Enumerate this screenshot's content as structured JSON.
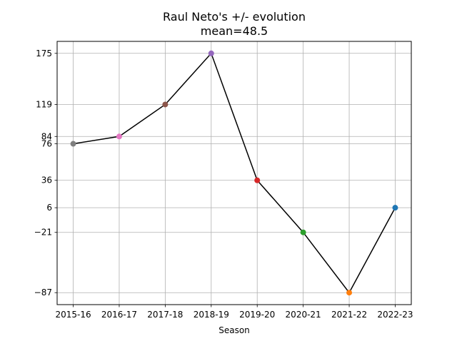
{
  "chart_data": {
    "type": "line",
    "title": "Raul Neto's +/- evolution",
    "subtitle": "mean=48.5",
    "xlabel": "Season",
    "ylabel": "",
    "categories": [
      "2015-16",
      "2016-17",
      "2017-18",
      "2018-19",
      "2019-20",
      "2020-21",
      "2021-22",
      "2022-23"
    ],
    "values": [
      76,
      84,
      119,
      175,
      36,
      -21,
      -87,
      6
    ],
    "point_colors": [
      "#7f7f7f",
      "#e377c2",
      "#8c564b",
      "#9467bd",
      "#d62728",
      "#2ca02c",
      "#ff7f0e",
      "#1f77b4"
    ],
    "line_color": "#000000",
    "yticks": [
      175,
      119,
      84,
      76,
      36,
      6,
      -21,
      -87
    ],
    "yticklabels": [
      "175",
      "119",
      "84",
      "76",
      "36",
      "6",
      "−21",
      "−87"
    ],
    "ylim": [
      -100.1,
      188.1
    ],
    "grid": true
  }
}
